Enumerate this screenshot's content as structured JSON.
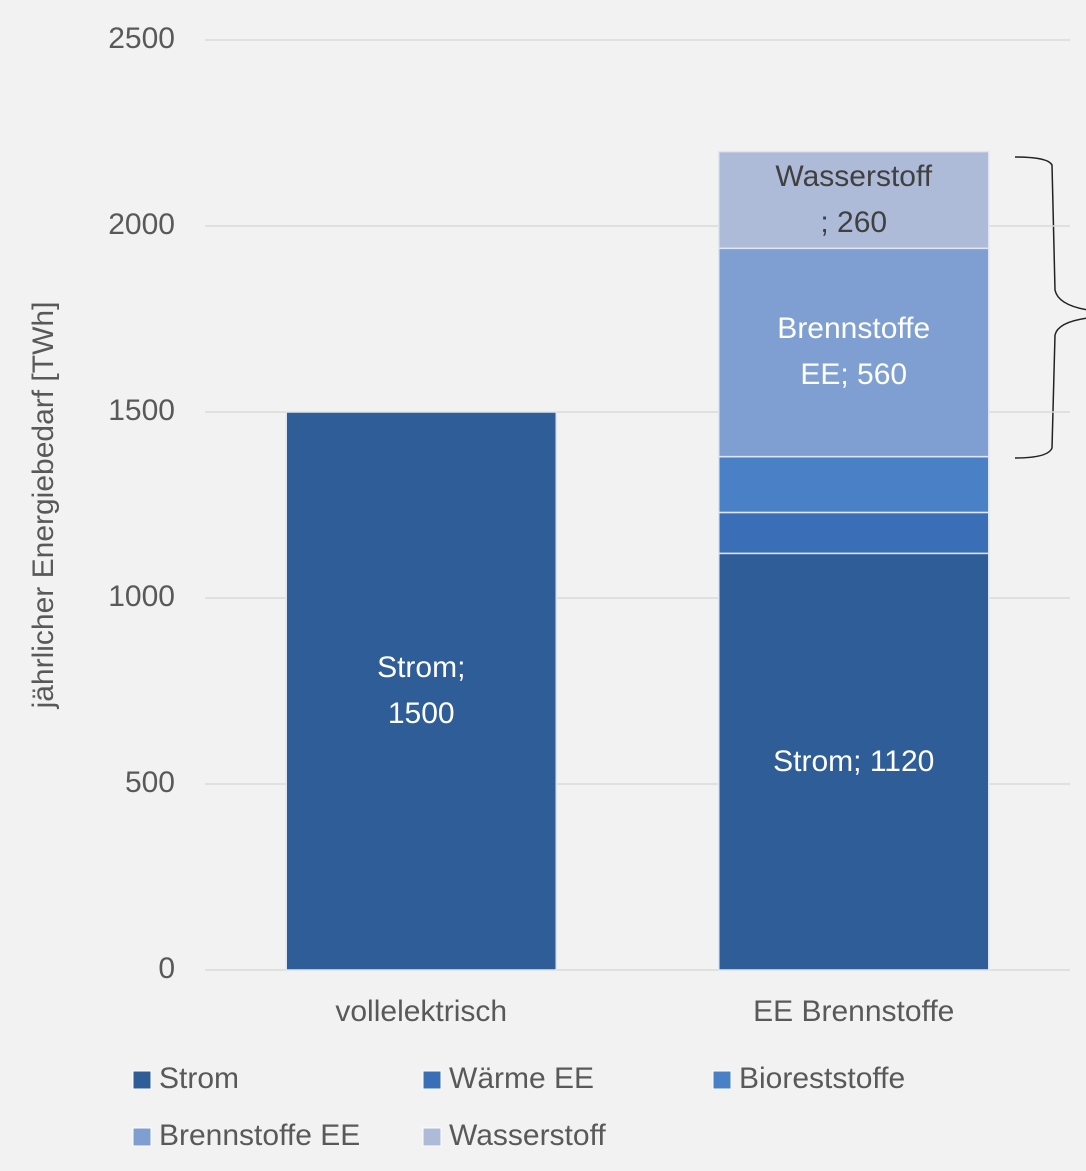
{
  "chart_data": {
    "type": "bar",
    "stacked": true,
    "y_label": "jährlicher Energiebedarf [TWh]",
    "categories": [
      "vollelektrisch",
      "EE Brennstoffe"
    ],
    "series": [
      {
        "name": "Strom",
        "color": "#2f5d98",
        "values": [
          1500,
          1120
        ],
        "value_labels": [
          "Strom;\n1500",
          "Strom; 1120"
        ]
      },
      {
        "name": "Wärme EE",
        "color": "#3a6fb7",
        "values": [
          0,
          110
        ]
      },
      {
        "name": "Bioreststoffe",
        "color": "#4a80c6",
        "values": [
          0,
          150
        ]
      },
      {
        "name": "Brennstoffe EE",
        "color": "#7f9fd2",
        "values": [
          0,
          560
        ],
        "value_labels": [
          null,
          "Brennstoffe\nEE; 560"
        ]
      },
      {
        "name": "Wasserstoff",
        "color": "#aebbd8",
        "values": [
          0,
          260
        ],
        "value_labels": [
          null,
          "Wasserstoff\n; 260"
        ]
      }
    ],
    "ylim": [
      0,
      2500
    ],
    "yticks": [
      0,
      500,
      1000,
      1500,
      2000,
      2500
    ],
    "grid": true,
    "legend": "bottom"
  }
}
